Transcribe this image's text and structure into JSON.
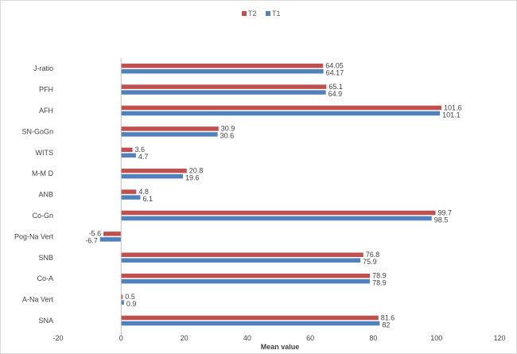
{
  "chart_data": {
    "type": "bar",
    "orientation": "horizontal",
    "categories": [
      "J-ratio",
      "PFH",
      "AFH",
      "SN-GoGn",
      "WITS",
      "M-M D",
      "ANB",
      "Co-Gn",
      "Pog-Na Vert",
      "SNB",
      "Co-A",
      "A-Na Vert",
      "SNA"
    ],
    "series": [
      {
        "name": "T2",
        "color": "#c0504d",
        "values": [
          64.05,
          65.1,
          101.6,
          30.9,
          3.6,
          20.8,
          4.8,
          99.7,
          -5.6,
          76.8,
          78.9,
          0.5,
          81.6
        ],
        "labels": [
          "64.05",
          "65.1",
          "101.6",
          "30.9",
          "3.6",
          "20.8",
          "4.8",
          "99.7",
          "-5.6",
          "76.8",
          "78.9",
          "0.5",
          "81.6"
        ]
      },
      {
        "name": "T1",
        "color": "#4f81bd",
        "values": [
          64.17,
          64.9,
          101.1,
          30.6,
          4.7,
          19.6,
          6.1,
          98.5,
          -6.7,
          75.9,
          78.9,
          0.9,
          82
        ],
        "labels": [
          "64.17",
          "64.9",
          "101.1",
          "30.6",
          "4.7",
          "19.6",
          "6.1",
          "98.5",
          "-6.7",
          "75.9",
          "78.9",
          "0.9",
          "82"
        ]
      }
    ],
    "xlabel": "Mean value",
    "xlim": [
      -20,
      120
    ],
    "xticks": [
      "-20",
      "0",
      "20",
      "40",
      "60",
      "80",
      "100",
      "120"
    ],
    "legend_position": "top-center",
    "grid": false
  }
}
